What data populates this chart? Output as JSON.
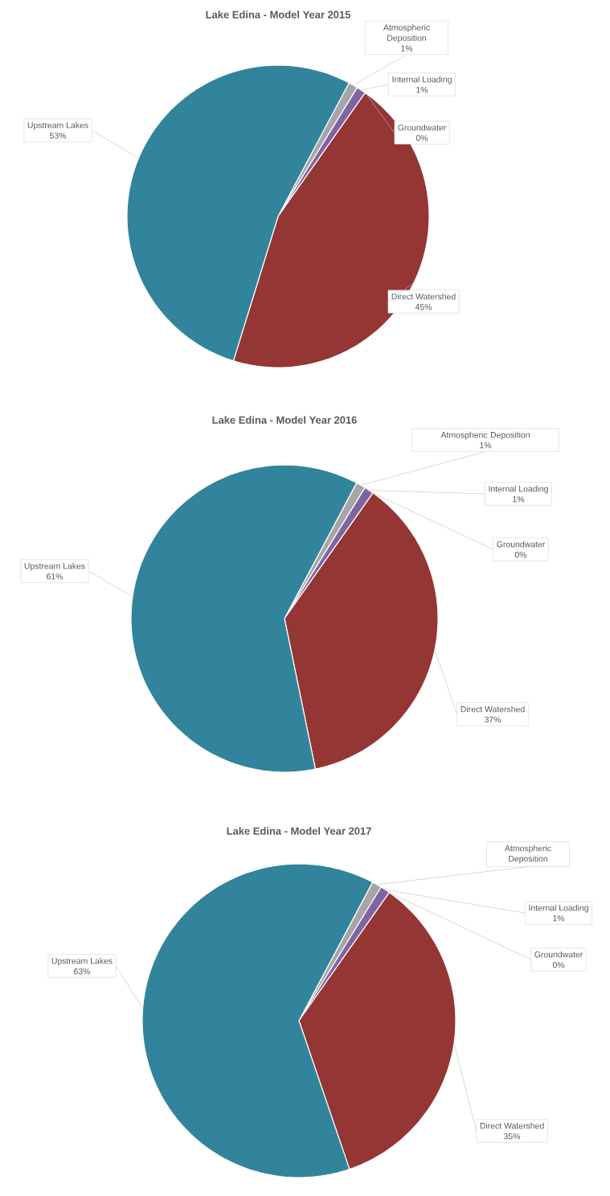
{
  "chart_data": [
    {
      "type": "pie",
      "title": "Lake Edina - Model Year 2015",
      "categories": [
        "Atmospheric Deposition",
        "Internal Loading",
        "Groundwater",
        "Direct Watershed",
        "Upstream Lakes"
      ],
      "values": [
        1,
        1,
        0,
        45,
        53
      ],
      "value_labels": [
        "1%",
        "1%",
        "0%",
        "45%",
        "53%"
      ],
      "colors": [
        "#a6a6a6",
        "#8064a2",
        "#f79646",
        "#943634",
        "#31849b"
      ]
    },
    {
      "type": "pie",
      "title": "Lake Edina - Model Year 2016",
      "categories": [
        "Atmospheric Deposition",
        "Internal Loading",
        "Groundwater",
        "Direct Watershed",
        "Upstream Lakes"
      ],
      "values": [
        1,
        1,
        0,
        37,
        61
      ],
      "value_labels": [
        "1%",
        "1%",
        "0%",
        "37%",
        "61%"
      ],
      "colors": [
        "#a6a6a6",
        "#8064a2",
        "#f79646",
        "#943634",
        "#31849b"
      ]
    },
    {
      "type": "pie",
      "title": "Lake Edina - Model Year 2017",
      "categories": [
        "Atmospheric Deposition",
        "Internal Loading",
        "Groundwater",
        "Direct Watershed",
        "Upstream Lakes"
      ],
      "values": [
        1,
        1,
        0,
        35,
        63
      ],
      "value_labels": [
        null,
        "1%",
        "0%",
        "35%",
        "63%"
      ],
      "colors": [
        "#a6a6a6",
        "#8064a2",
        "#f79646",
        "#943634",
        "#31849b"
      ]
    }
  ]
}
